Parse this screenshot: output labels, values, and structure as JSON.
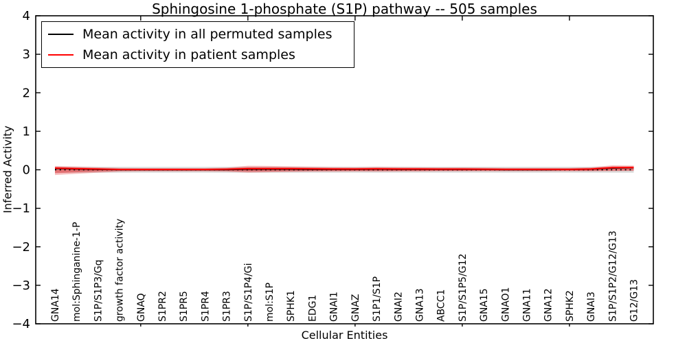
{
  "figure": {
    "title": "Sphingosine 1-phosphate (S1P) pathway -- 505 samples"
  },
  "legend": {
    "items": [
      {
        "label": "Mean activity in all permuted samples",
        "color": "#000000"
      },
      {
        "label": "Mean activity in patient samples",
        "color": "#ff0000"
      }
    ]
  },
  "chart_data": {
    "type": "line",
    "title": "Sphingosine 1-phosphate (S1P) pathway -- 505 samples",
    "xlabel": "Cellular Entities",
    "ylabel": "Inferred Activity",
    "ylim": [
      -4,
      4
    ],
    "yticks": [
      -4,
      -3,
      -2,
      -1,
      0,
      1,
      2,
      3,
      4
    ],
    "ytick_labels": [
      "−4",
      "−3",
      "−2",
      "−1",
      "0",
      "1",
      "2",
      "3",
      "4"
    ],
    "top_tick_indices": [
      4,
      9,
      14,
      19,
      24
    ],
    "grid": false,
    "legend_position": "upper left",
    "categories": [
      "GNA14",
      "mol:Sphinganine-1-P",
      "S1P/S1P3/Gq",
      "growth factor activity",
      "GNAQ",
      "S1PR2",
      "S1PR5",
      "S1PR4",
      "S1PR3",
      "S1P/S1P4/Gi",
      "mol:S1P",
      "SPHK1",
      "EDG1",
      "GNAI1",
      "GNAZ",
      "S1P1/S1P",
      "GNAI2",
      "GNA13",
      "ABCC1",
      "S1P/S1P5/G12",
      "GNA15",
      "GNAO1",
      "GNA11",
      "GNA12",
      "SPHK2",
      "GNAI3",
      "S1P/S1P2/G12/G13",
      "G12/G13"
    ],
    "series": [
      {
        "name": "Mean activity in all permuted samples",
        "color": "#000000",
        "width": 1.4,
        "values": [
          0.03,
          0.015,
          0.005,
          0.0,
          0.0,
          0.0,
          0.0,
          0.0,
          0.0,
          0.01,
          0.01,
          0.01,
          0.005,
          0.005,
          0.005,
          0.01,
          0.005,
          0.005,
          0.005,
          0.005,
          0.005,
          0.0,
          0.0,
          0.0,
          0.005,
          0.01,
          0.04,
          0.05
        ]
      },
      {
        "name": "Mean activity in patient samples",
        "color": "#ff0000",
        "width": 2,
        "values": [
          0.045,
          0.03,
          0.02,
          0.01,
          0.01,
          0.01,
          0.01,
          0.01,
          0.015,
          0.03,
          0.03,
          0.03,
          0.025,
          0.02,
          0.02,
          0.025,
          0.02,
          0.02,
          0.018,
          0.018,
          0.015,
          0.012,
          0.012,
          0.012,
          0.012,
          0.02,
          0.055,
          0.06
        ]
      }
    ],
    "bands": [
      {
        "name": "permuted-std-band",
        "color": "#999999",
        "opacity": 0.35,
        "upper": [
          0.075,
          0.075,
          0.075,
          0.075,
          0.075,
          0.075,
          0.075,
          0.075,
          0.075,
          0.075,
          0.075,
          0.075,
          0.075,
          0.075,
          0.075,
          0.075,
          0.075,
          0.075,
          0.075,
          0.075,
          0.075,
          0.075,
          0.075,
          0.075,
          0.075,
          0.075,
          0.075,
          0.075
        ],
        "lower": [
          -0.075,
          -0.075,
          -0.075,
          -0.075,
          -0.075,
          -0.075,
          -0.075,
          -0.075,
          -0.075,
          -0.075,
          -0.075,
          -0.075,
          -0.075,
          -0.075,
          -0.075,
          -0.075,
          -0.075,
          -0.075,
          -0.075,
          -0.075,
          -0.075,
          -0.075,
          -0.075,
          -0.075,
          -0.075,
          -0.075,
          -0.075,
          -0.075
        ]
      },
      {
        "name": "patient-std-band-outer",
        "color": "#e41a1c",
        "opacity": 0.28,
        "upper": [
          0.1,
          0.085,
          0.065,
          0.05,
          0.045,
          0.045,
          0.045,
          0.045,
          0.055,
          0.105,
          0.1,
          0.09,
          0.08,
          0.07,
          0.065,
          0.075,
          0.07,
          0.065,
          0.06,
          0.06,
          0.055,
          0.05,
          0.05,
          0.05,
          0.05,
          0.065,
          0.115,
          0.11
        ],
        "lower": [
          -0.135,
          -0.105,
          -0.075,
          -0.05,
          -0.045,
          -0.045,
          -0.045,
          -0.045,
          -0.05,
          -0.075,
          -0.065,
          -0.055,
          -0.05,
          -0.05,
          -0.045,
          -0.05,
          -0.045,
          -0.045,
          -0.04,
          -0.04,
          -0.04,
          -0.04,
          -0.04,
          -0.04,
          -0.04,
          -0.04,
          -0.035,
          -0.03
        ]
      },
      {
        "name": "patient-std-band-inner",
        "color": "#e41a1c",
        "opacity": 0.38,
        "upper": [
          0.07,
          0.055,
          0.04,
          0.03,
          0.028,
          0.028,
          0.028,
          0.028,
          0.035,
          0.065,
          0.065,
          0.06,
          0.05,
          0.045,
          0.04,
          0.05,
          0.045,
          0.042,
          0.04,
          0.04,
          0.036,
          0.033,
          0.033,
          0.033,
          0.033,
          0.042,
          0.085,
          0.085
        ],
        "lower": [
          -0.09,
          -0.065,
          -0.045,
          -0.03,
          -0.027,
          -0.027,
          -0.027,
          -0.027,
          -0.032,
          -0.045,
          -0.04,
          -0.035,
          -0.032,
          -0.03,
          -0.028,
          -0.03,
          -0.028,
          -0.028,
          -0.026,
          -0.026,
          -0.025,
          -0.025,
          -0.025,
          -0.025,
          -0.025,
          -0.027,
          -0.02,
          -0.018
        ]
      }
    ],
    "zero_line": {
      "y": 0,
      "color": "#000000",
      "style": "dotted"
    }
  }
}
